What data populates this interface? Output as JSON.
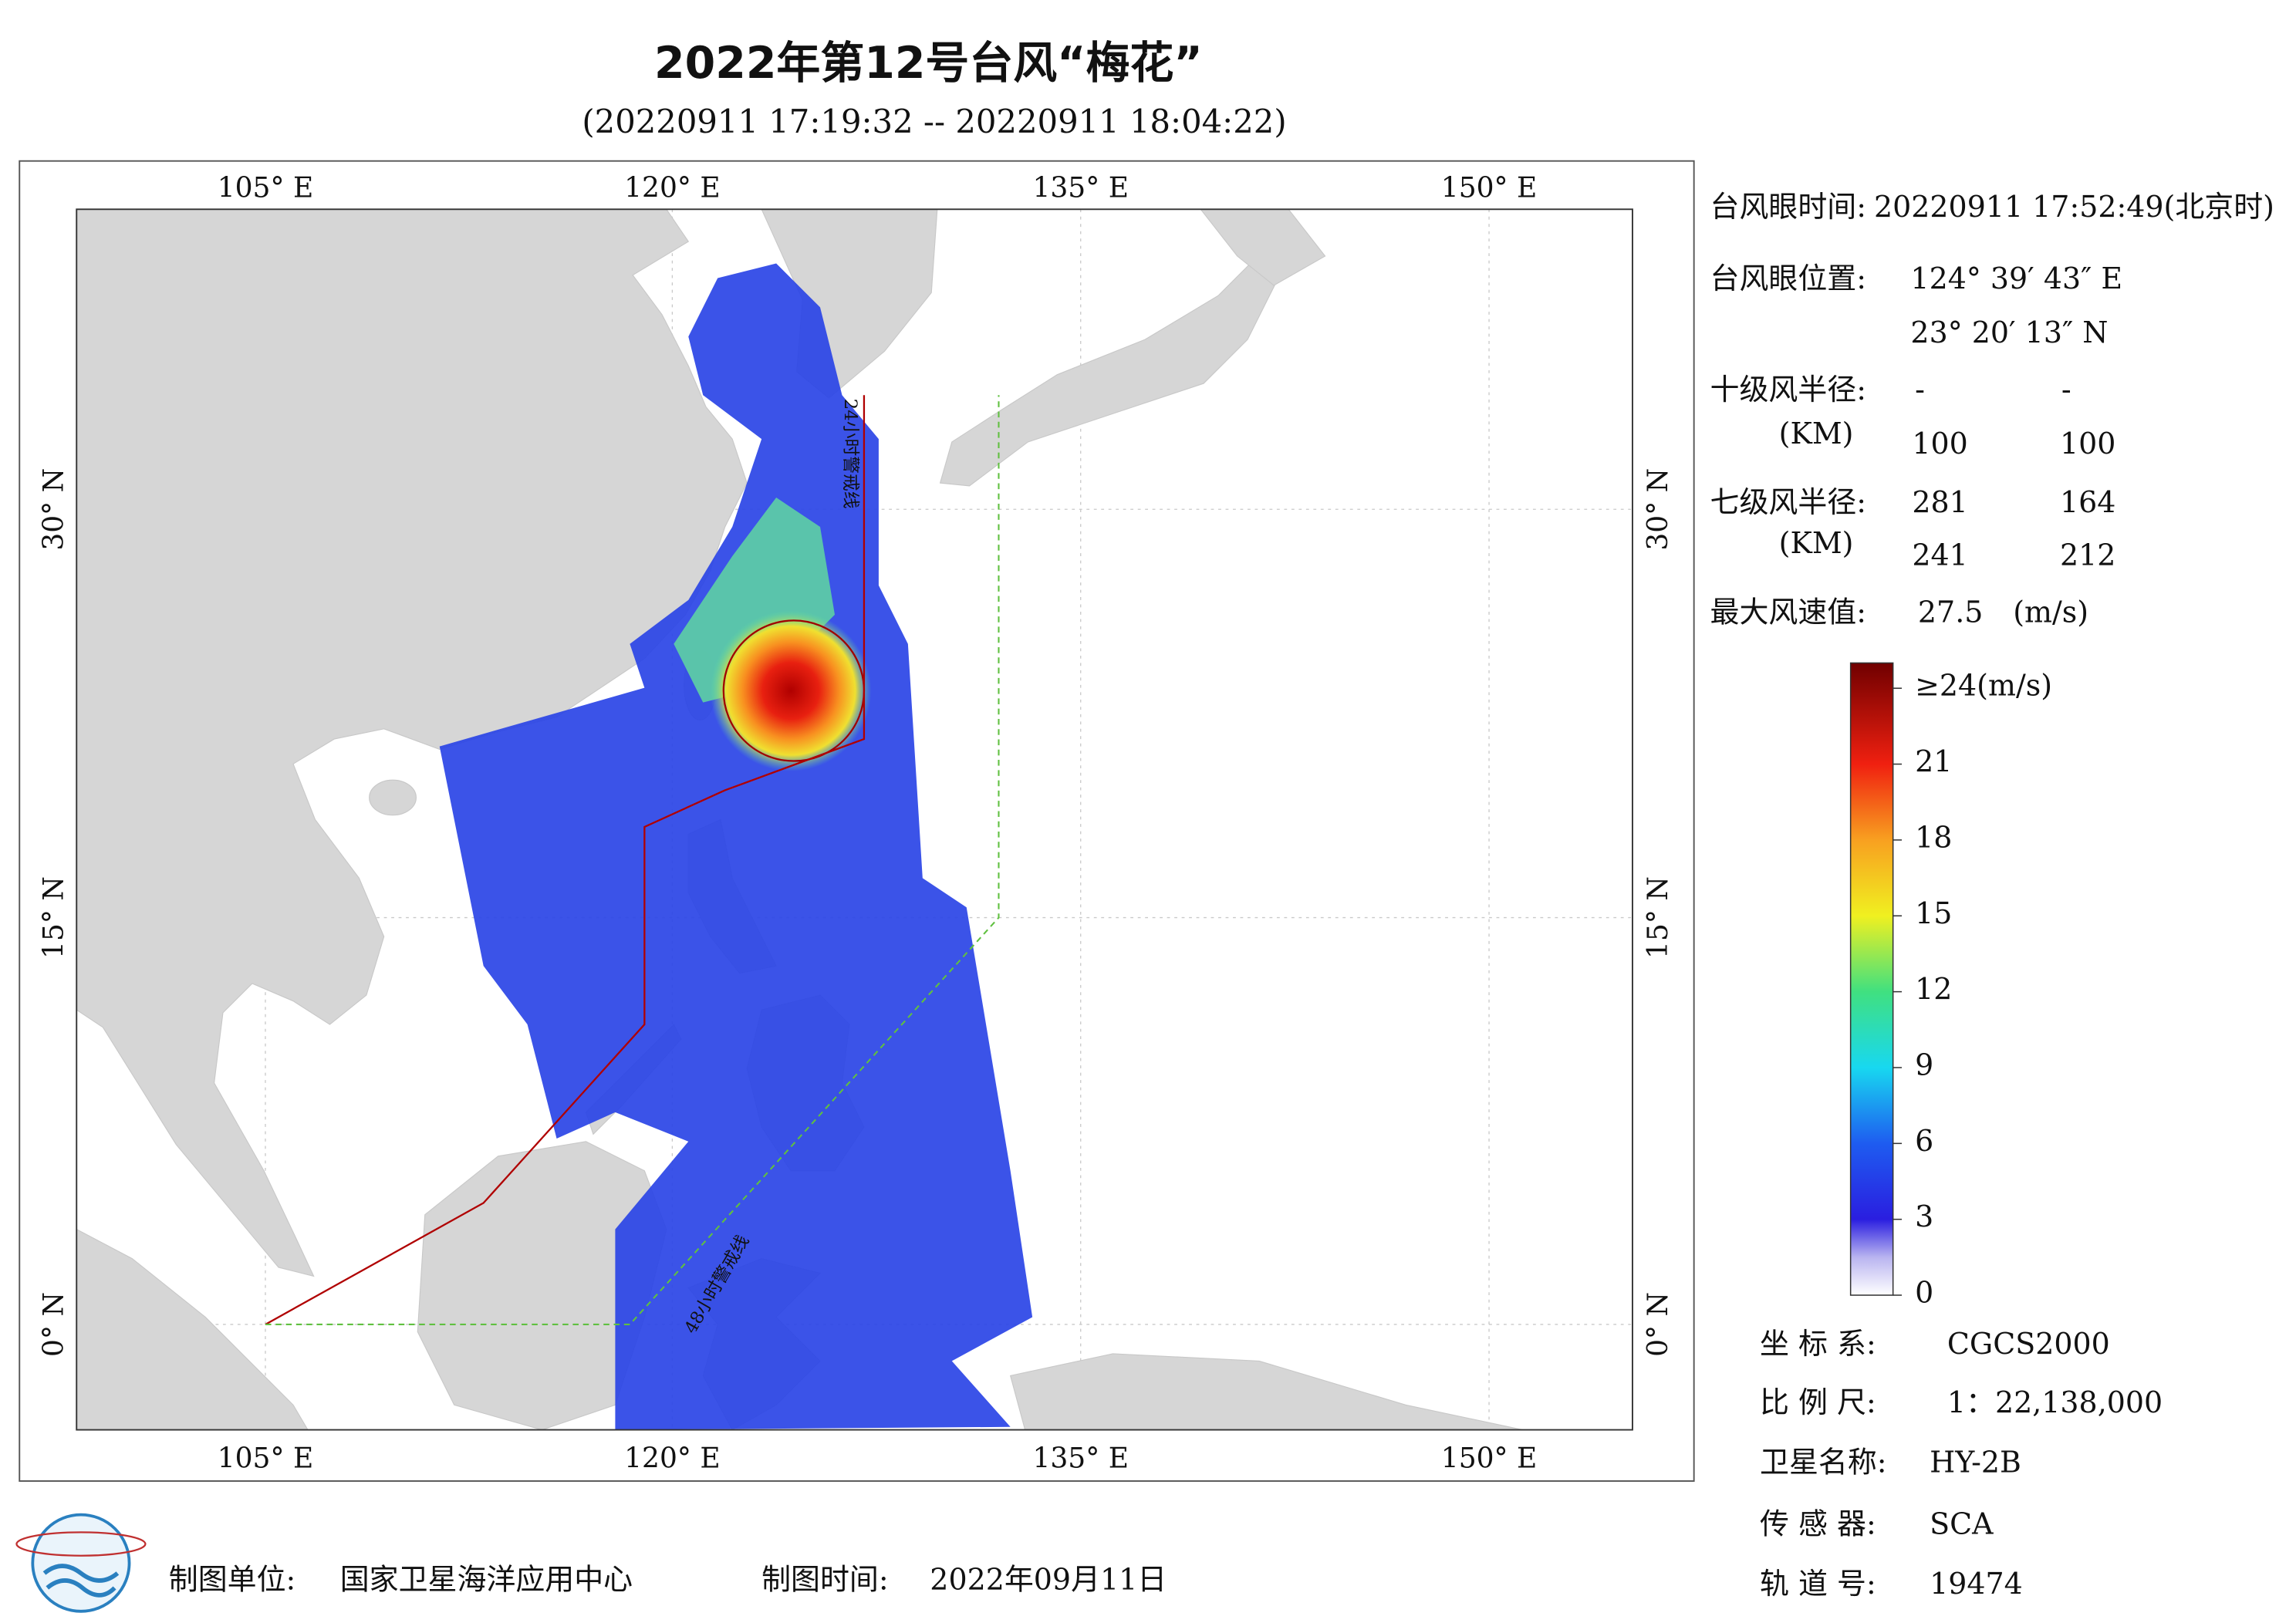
{
  "title": "2022年第12号台风“梅花”",
  "subtitle": "(20220911 17:19:32 -- 20220911 18:04:22)",
  "map": {
    "lon_labels": [
      "105° E",
      "120° E",
      "135° E",
      "150° E"
    ],
    "lat_labels": [
      "30° N",
      "15° N",
      "0° N"
    ],
    "line_24h": "24小时警戒线",
    "line_48h": "48小时警戒线"
  },
  "info": {
    "eye_time": {
      "label": "台风眼时间:",
      "value": "20220911 17:52:49(北京时)"
    },
    "eye_position": {
      "label": "台风眼位置:",
      "lon": "124° 39′ 43″ E",
      "lat": "23° 20′ 13″ N"
    },
    "r10": {
      "label": "十级风半径:",
      "unit": "(KM)",
      "row1": [
        "-",
        "-"
      ],
      "row2": [
        100,
        100
      ]
    },
    "r7": {
      "label": "七级风半径:",
      "unit": "(KM)",
      "row1": [
        281,
        164
      ],
      "row2": [
        241,
        212
      ]
    },
    "max_wind": {
      "label": "最大风速值:",
      "value": 27.5,
      "unit": "(m/s)"
    }
  },
  "colorbar": {
    "lim": [
      0,
      25
    ],
    "ticks": [
      0,
      3,
      6,
      9,
      12,
      15,
      18,
      21,
      {
        "value": 24,
        "label": "≥24(m/s)"
      }
    ]
  },
  "meta": {
    "coord": {
      "label": "坐 标 系:",
      "value": "CGCS2000"
    },
    "scale": {
      "label": "比 例 尺:",
      "value": "1：22,138,000"
    },
    "satellite": {
      "label": "卫星名称:",
      "value": "HY-2B"
    },
    "sensor": {
      "label": "传 感 器:",
      "value": "SCA"
    },
    "orbit": {
      "label": "轨 道 号:",
      "value": "19474"
    }
  },
  "footer": {
    "maker": {
      "label": "制图单位:",
      "value": "国家卫星海洋应用中心"
    },
    "date": {
      "label": "制图时间:",
      "value": "2022年09月11日"
    }
  }
}
